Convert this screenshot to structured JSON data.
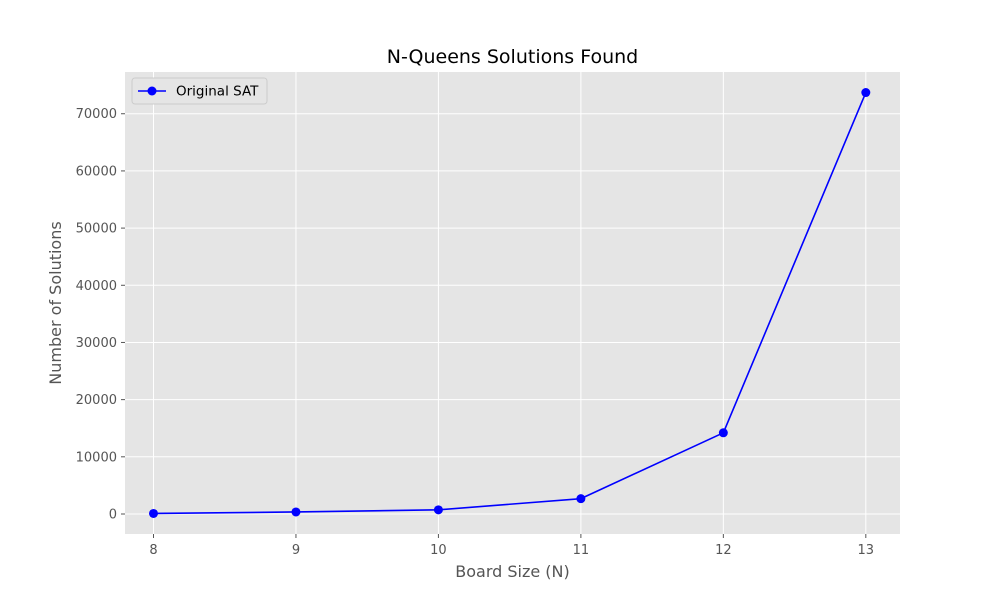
{
  "chart_data": {
    "type": "line",
    "title": "N-Queens Solutions Found",
    "xlabel": "Board Size (N)",
    "ylabel": "Number of Solutions",
    "x": [
      8,
      9,
      10,
      11,
      12,
      13
    ],
    "x_tick_labels": [
      "8",
      "9",
      "10",
      "11",
      "12",
      "13"
    ],
    "y_ticks": [
      0,
      10000,
      20000,
      30000,
      40000,
      50000,
      60000,
      70000
    ],
    "y_tick_labels": [
      "0",
      "10000",
      "20000",
      "30000",
      "40000",
      "50000",
      "60000",
      "70000"
    ],
    "xlim": [
      7.8,
      13.24
    ],
    "ylim": [
      -3500,
      77300
    ],
    "grid": true,
    "legend_position": "top-left",
    "series": [
      {
        "name": "Original SAT",
        "color": "#0000ff",
        "marker": "circle",
        "values": [
          92,
          352,
          724,
          2680,
          14200,
          73712
        ]
      }
    ]
  },
  "colors": {
    "plot_background": "#e5e5e5",
    "grid": "#ffffff",
    "tick_text": "#555555"
  }
}
